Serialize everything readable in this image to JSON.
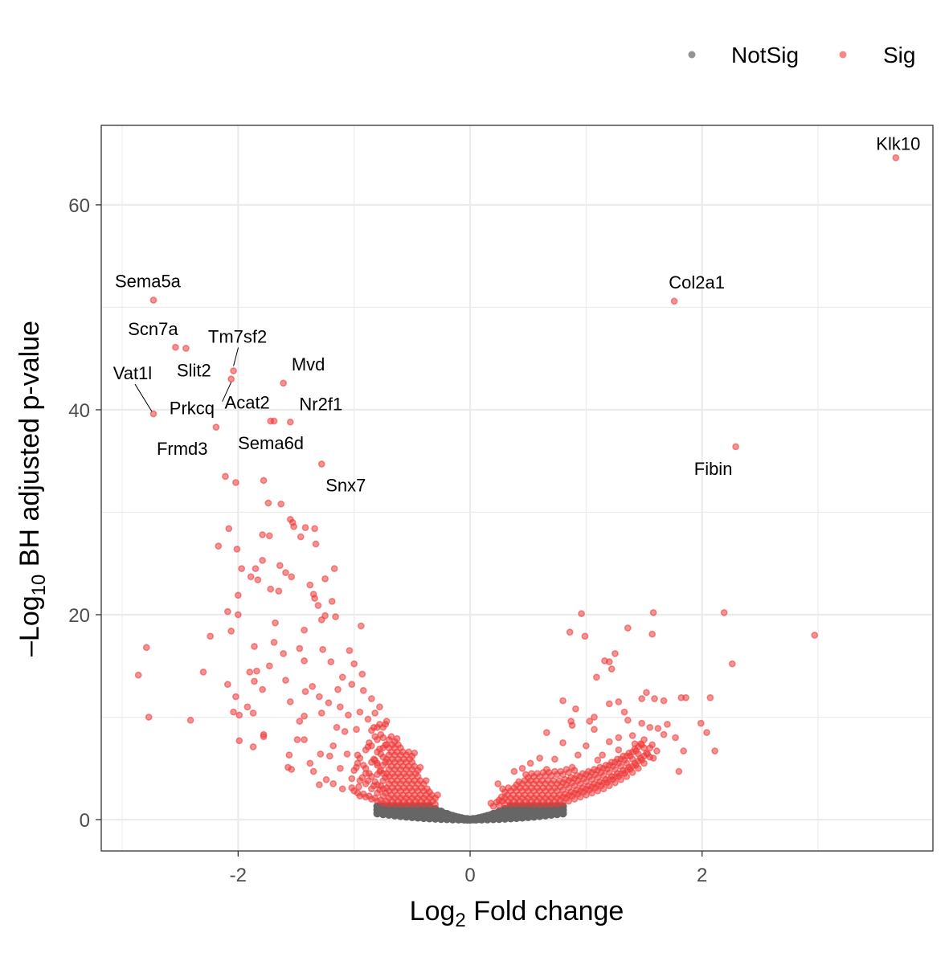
{
  "chart_data": {
    "type": "scatter",
    "title": "",
    "xlabel": {
      "base": "Log",
      "sub": "2",
      "rest": " Fold change"
    },
    "ylabel": {
      "prefix": "–Log",
      "sub": "10",
      "rest": " BH adjusted p-value"
    },
    "xlim": [
      -3.18,
      3.99
    ],
    "ylim": [
      -3.06,
      67.76
    ],
    "xticks": [
      -2,
      0,
      2
    ],
    "xtick_labels": [
      "-2",
      "0",
      "2"
    ],
    "yticks": [
      0,
      20,
      40,
      60
    ],
    "ytick_labels": [
      "0",
      "20",
      "40",
      "60"
    ],
    "grid": true,
    "legend": {
      "placement": "top-right",
      "entries": [
        {
          "label": "NotSig",
          "color": "#666666"
        },
        {
          "label": "Sig",
          "color": "#EE3B3B"
        }
      ]
    },
    "colors": {
      "NotSig": "#666666",
      "Sig": "#EE3B3B"
    },
    "labeled_genes": [
      {
        "gene": "Klk10",
        "x": 3.67,
        "y": 64.6
      },
      {
        "gene": "Col2a1",
        "x": 1.76,
        "y": 50.6
      },
      {
        "gene": "Fibin",
        "x": 2.29,
        "y": 36.4
      },
      {
        "gene": "Sema5a",
        "x": -2.73,
        "y": 50.7
      },
      {
        "gene": "Scn7a",
        "x": -2.54,
        "y": 46.1
      },
      {
        "gene": "Slit2",
        "x": -2.45,
        "y": 46.0
      },
      {
        "gene": "Tm7sf2",
        "x": -2.04,
        "y": 43.8
      },
      {
        "gene": "Acat2",
        "x": -2.06,
        "y": 43.0
      },
      {
        "gene": "Mvd",
        "x": -1.61,
        "y": 42.6
      },
      {
        "gene": "Vat1l",
        "x": -2.73,
        "y": 39.6
      },
      {
        "gene": "Nr2f1",
        "x": -1.55,
        "y": 38.8
      },
      {
        "gene": "Prkcq",
        "x": -2.19,
        "y": 38.3
      },
      {
        "gene": "Frmd3",
        "x": -1.72,
        "y": 38.9
      },
      {
        "gene": "Sema6d",
        "x": -1.69,
        "y": 38.9
      },
      {
        "gene": "Snx7",
        "x": -1.28,
        "y": 34.7
      }
    ],
    "sig_points": [
      [
        -2.11,
        33.5
      ],
      [
        -2.02,
        32.9
      ],
      [
        -1.78,
        33.1
      ],
      [
        -1.74,
        30.9
      ],
      [
        -1.63,
        30.8
      ],
      [
        -1.55,
        29.3
      ],
      [
        -1.52,
        28.6
      ],
      [
        -1.53,
        29.0
      ],
      [
        -1.42,
        28.5
      ],
      [
        -1.34,
        28.4
      ],
      [
        -1.46,
        27.6
      ],
      [
        -2.08,
        28.4
      ],
      [
        -1.79,
        27.8
      ],
      [
        -1.73,
        27.7
      ],
      [
        -1.33,
        26.9
      ],
      [
        -2.17,
        26.7
      ],
      [
        -2.01,
        26.4
      ],
      [
        -1.79,
        25.3
      ],
      [
        -1.97,
        24.5
      ],
      [
        -1.85,
        24.5
      ],
      [
        -1.64,
        24.8
      ],
      [
        -1.59,
        24.1
      ],
      [
        -1.17,
        24.5
      ],
      [
        -1.89,
        23.7
      ],
      [
        -1.83,
        23.4
      ],
      [
        -1.54,
        23.7
      ],
      [
        -1.25,
        23.5
      ],
      [
        -1.38,
        22.9
      ],
      [
        -1.72,
        22.5
      ],
      [
        -1.65,
        22.3
      ],
      [
        -2.0,
        21.9
      ],
      [
        -1.35,
        22.0
      ],
      [
        -1.34,
        21.6
      ],
      [
        -1.19,
        21.3
      ],
      [
        -2.09,
        20.3
      ],
      [
        -2.0,
        20.0
      ],
      [
        -1.31,
        20.9
      ],
      [
        -1.25,
        19.9
      ],
      [
        -1.16,
        19.8
      ],
      [
        -1.68,
        19.2
      ],
      [
        -1.28,
        19.5
      ],
      [
        -0.94,
        18.9
      ],
      [
        -2.06,
        18.4
      ],
      [
        -2.24,
        17.9
      ],
      [
        -1.43,
        18.5
      ],
      [
        -2.79,
        16.8
      ],
      [
        -1.86,
        16.9
      ],
      [
        -1.69,
        17.3
      ],
      [
        -1.27,
        16.6
      ],
      [
        -1.04,
        16.5
      ],
      [
        -1.61,
        16.2
      ],
      [
        -1.47,
        16.7
      ],
      [
        -1.9,
        14.4
      ],
      [
        -1.84,
        14.5
      ],
      [
        -2.3,
        14.4
      ],
      [
        -2.86,
        14.1
      ],
      [
        -1.73,
        15.0
      ],
      [
        -1.43,
        15.5
      ],
      [
        -1.0,
        15.2
      ],
      [
        -1.2,
        15.4
      ],
      [
        -1.86,
        13.5
      ],
      [
        -1.59,
        13.6
      ],
      [
        -2.09,
        13.2
      ],
      [
        -1.79,
        12.7
      ],
      [
        -1.42,
        12.5
      ],
      [
        -1.14,
        12.7
      ],
      [
        -2.02,
        12.0
      ],
      [
        -1.55,
        11.5
      ],
      [
        -1.92,
        11.0
      ],
      [
        -2.77,
        10.0
      ],
      [
        -2.04,
        10.5
      ],
      [
        -2.41,
        9.7
      ],
      [
        -1.99,
        10.2
      ],
      [
        -1.87,
        10.4
      ],
      [
        -1.43,
        10.1
      ],
      [
        -1.28,
        10.4
      ],
      [
        -1.47,
        9.6
      ],
      [
        -1.99,
        7.7
      ],
      [
        -1.87,
        7.1
      ],
      [
        -1.78,
        8.3
      ],
      [
        -1.78,
        8.1
      ],
      [
        -1.49,
        7.8
      ],
      [
        -1.43,
        7.8
      ],
      [
        -1.56,
        6.3
      ],
      [
        -1.57,
        5.1
      ],
      [
        -1.54,
        4.9
      ],
      [
        -1.38,
        5.5
      ],
      [
        -1.35,
        4.7
      ],
      [
        -1.29,
        6.4
      ],
      [
        -1.21,
        6.2
      ],
      [
        -1.24,
        3.9
      ],
      [
        -1.18,
        3.5
      ],
      [
        -1.06,
        6.4
      ],
      [
        -0.97,
        5.5
      ],
      [
        -0.9,
        4.5
      ],
      [
        -0.8,
        5.3
      ],
      [
        -1.1,
        13.9
      ],
      [
        -1.02,
        13.2
      ],
      [
        -0.92,
        12.6
      ],
      [
        -0.85,
        11.8
      ],
      [
        -1.12,
        11.0
      ],
      [
        -1.05,
        10.2
      ],
      [
        -0.95,
        10.5
      ],
      [
        -0.88,
        9.8
      ],
      [
        -1.15,
        9.0
      ],
      [
        -1.08,
        8.6
      ],
      [
        -0.98,
        8.8
      ],
      [
        -0.82,
        10.4
      ],
      [
        -1.3,
        12.0
      ],
      [
        -1.22,
        11.4
      ],
      [
        -1.36,
        13.0
      ],
      [
        -0.93,
        14.2
      ],
      [
        -1.18,
        7.2
      ],
      [
        -1.12,
        5.0
      ],
      [
        -1.02,
        4.0
      ],
      [
        -0.96,
        3.2
      ],
      [
        -1.1,
        3.0
      ],
      [
        -1.3,
        3.4
      ],
      [
        -0.72,
        9.6
      ],
      [
        -0.78,
        11.0
      ],
      [
        0.96,
        20.1
      ],
      [
        1.58,
        20.2
      ],
      [
        2.19,
        20.2
      ],
      [
        2.97,
        18.0
      ],
      [
        0.86,
        18.3
      ],
      [
        0.99,
        17.9
      ],
      [
        1.36,
        18.7
      ],
      [
        1.57,
        18.1
      ],
      [
        1.25,
        16.2
      ],
      [
        1.16,
        15.5
      ],
      [
        1.2,
        15.4
      ],
      [
        1.22,
        14.7
      ],
      [
        1.09,
        13.9
      ],
      [
        2.26,
        15.2
      ],
      [
        0.8,
        11.6
      ],
      [
        0.91,
        10.8
      ],
      [
        1.2,
        11.3
      ],
      [
        1.28,
        11.5
      ],
      [
        1.86,
        11.9
      ],
      [
        2.07,
        11.9
      ],
      [
        1.82,
        11.9
      ],
      [
        1.52,
        12.4
      ],
      [
        1.59,
        11.8
      ],
      [
        1.67,
        11.6
      ],
      [
        1.48,
        11.8
      ],
      [
        1.03,
        9.6
      ],
      [
        1.07,
        10.0
      ],
      [
        1.36,
        9.7
      ],
      [
        1.48,
        9.4
      ],
      [
        1.99,
        9.4
      ],
      [
        2.04,
        8.5
      ],
      [
        1.67,
        8.3
      ],
      [
        1.07,
        8.8
      ],
      [
        0.87,
        9.6
      ],
      [
        0.66,
        8.5
      ],
      [
        1.28,
        8.0
      ],
      [
        2.11,
        6.7
      ],
      [
        1.61,
        6.7
      ],
      [
        1.84,
        6.7
      ],
      [
        1.8,
        4.7
      ],
      [
        1.77,
        8.0
      ],
      [
        0.88,
        9.2
      ],
      [
        1.42,
        7.4
      ],
      [
        0.8,
        7.5
      ],
      [
        0.93,
        6.3
      ],
      [
        1.14,
        6.3
      ],
      [
        1.28,
        6.8
      ],
      [
        0.73,
        5.9
      ],
      [
        0.52,
        5.5
      ],
      [
        0.66,
        4.9
      ],
      [
        0.38,
        4.7
      ],
      [
        0.24,
        3.5
      ],
      [
        1.62,
        8.9
      ],
      [
        1.7,
        9.3
      ],
      [
        1.4,
        8.2
      ],
      [
        1.55,
        9.0
      ],
      [
        1.0,
        7.2
      ],
      [
        1.2,
        7.6
      ],
      [
        0.6,
        6.0
      ],
      [
        0.45,
        5.0
      ],
      [
        1.33,
        10.5
      ],
      [
        1.1,
        5.8
      ],
      [
        1.5,
        7.8
      ],
      [
        1.58,
        6.0
      ]
    ],
    "sig_dense_columns": [
      [
        -1.0,
        [
          2.8,
          4.8
        ]
      ],
      [
        -0.95,
        [
          2.3,
          3.8,
          6.0
        ]
      ],
      [
        -0.9,
        [
          2.2,
          3.5,
          5.0,
          6.8
        ]
      ],
      [
        -0.85,
        [
          2.0,
          3.0,
          4.2,
          5.6,
          7.2,
          8.7
        ]
      ],
      [
        -0.8,
        [
          1.8,
          2.6,
          3.4,
          4.4,
          5.5,
          6.6,
          7.8,
          9.0
        ]
      ],
      [
        -0.75,
        [
          1.6,
          2.3,
          3.0,
          3.8,
          4.5,
          5.3,
          6.1,
          7.0,
          8.0,
          9.0
        ]
      ],
      [
        -0.7,
        [
          1.5,
          2.1,
          2.8,
          3.5,
          4.2,
          4.9,
          5.6,
          6.3,
          7.0,
          7.8
        ]
      ],
      [
        -0.65,
        [
          1.5,
          2.1,
          2.8,
          3.5,
          4.2,
          4.9,
          5.6,
          6.3,
          7.0,
          7.6
        ]
      ],
      [
        -0.6,
        [
          1.5,
          2.1,
          2.8,
          3.5,
          4.2,
          4.9,
          5.6,
          6.3,
          7.0
        ]
      ],
      [
        -0.55,
        [
          1.5,
          2.1,
          2.8,
          3.5,
          4.2,
          4.9,
          5.6,
          6.3
        ]
      ],
      [
        -0.5,
        [
          1.5,
          2.1,
          2.8,
          3.5,
          4.2,
          4.9,
          5.6,
          6.2
        ]
      ],
      [
        -0.45,
        [
          1.5,
          2.1,
          2.8,
          3.5,
          4.2,
          4.8
        ]
      ],
      [
        -0.4,
        [
          1.5,
          2.1,
          2.8,
          3.5
        ]
      ],
      [
        -0.35,
        [
          1.5,
          2.1,
          2.7
        ]
      ],
      [
        -0.3,
        [
          1.5,
          2.1
        ]
      ],
      [
        0.2,
        [
          1.3
        ]
      ],
      [
        0.25,
        [
          1.4,
          1.9
        ]
      ],
      [
        0.3,
        [
          1.5,
          2.1,
          2.7
        ]
      ],
      [
        0.35,
        [
          1.5,
          2.1,
          2.8
        ]
      ],
      [
        0.4,
        [
          1.5,
          2.1,
          2.8,
          3.4
        ]
      ],
      [
        0.45,
        [
          1.5,
          2.1,
          2.8,
          3.5
        ]
      ],
      [
        0.5,
        [
          1.5,
          2.1,
          2.8,
          3.5,
          4.1
        ]
      ],
      [
        0.55,
        [
          1.5,
          2.1,
          2.8,
          3.5,
          4.2
        ]
      ],
      [
        0.6,
        [
          1.5,
          2.1,
          2.8,
          3.5,
          4.2
        ]
      ],
      [
        0.65,
        [
          1.5,
          2.1,
          2.8,
          3.5,
          4.3
        ]
      ],
      [
        0.7,
        [
          1.5,
          2.1,
          2.8,
          3.5,
          4.3
        ]
      ],
      [
        0.75,
        [
          1.5,
          2.1,
          2.8,
          3.5,
          4.4
        ]
      ],
      [
        0.8,
        [
          1.6,
          2.2,
          2.9,
          3.6,
          4.4
        ]
      ],
      [
        0.85,
        [
          1.8,
          2.4,
          3.1,
          3.8,
          4.6
        ]
      ],
      [
        0.9,
        [
          2.0,
          2.6,
          3.3,
          4.0,
          4.8
        ]
      ],
      [
        0.95,
        [
          2.2,
          2.8,
          3.5,
          4.2
        ]
      ],
      [
        1.0,
        [
          2.4,
          3.0,
          3.7,
          4.4
        ]
      ],
      [
        1.05,
        [
          2.6,
          3.2,
          3.9,
          4.6
        ]
      ],
      [
        1.1,
        [
          2.8,
          3.4,
          4.1,
          4.8
        ]
      ],
      [
        1.15,
        [
          3.0,
          3.6,
          4.3,
          5.0
        ]
      ],
      [
        1.2,
        [
          3.3,
          3.9,
          4.6,
          5.3
        ]
      ],
      [
        1.25,
        [
          3.6,
          4.2,
          4.9,
          5.6
        ]
      ],
      [
        1.3,
        [
          3.9,
          4.5,
          5.2,
          5.9
        ]
      ],
      [
        1.35,
        [
          4.2,
          4.8,
          5.5,
          6.2
        ]
      ],
      [
        1.4,
        [
          4.6,
          5.2,
          5.9,
          6.6
        ]
      ],
      [
        1.45,
        [
          5.0,
          5.7,
          6.4,
          7.1
        ]
      ],
      [
        1.5,
        [
          5.5,
          6.2,
          7.0
        ]
      ],
      [
        1.55,
        [
          6.1,
          7.0
        ]
      ]
    ],
    "notsig_columns": [
      [
        0.0,
        [
          0,
          0,
          0
        ]
      ],
      [
        0.05,
        [
          0.0,
          0.04,
          0.07
        ]
      ],
      [
        0.1,
        [
          0.01,
          0.1,
          0.2
        ]
      ],
      [
        0.15,
        [
          0.02,
          0.19,
          0.36
        ]
      ],
      [
        0.2,
        [
          0.04,
          0.3,
          0.56
        ]
      ],
      [
        0.25,
        [
          0.06,
          0.42,
          0.78
        ]
      ],
      [
        0.3,
        [
          0.09,
          0.56,
          1.03
        ]
      ],
      [
        0.35,
        [
          0.12,
          0.71,
          1.3
        ]
      ],
      [
        0.4,
        [
          0.15,
          0.73,
          1.3
        ]
      ],
      [
        0.45,
        [
          0.19,
          0.75,
          1.3
        ]
      ],
      [
        0.5,
        [
          0.24,
          0.77,
          1.3
        ]
      ],
      [
        0.55,
        [
          0.29,
          0.8,
          1.3
        ]
      ],
      [
        0.6,
        [
          0.34,
          0.82,
          1.3
        ]
      ],
      [
        0.65,
        [
          0.4,
          0.85,
          1.3
        ]
      ],
      [
        0.7,
        [
          0.47,
          0.88,
          1.3
        ]
      ],
      [
        0.75,
        [
          0.53,
          0.92,
          1.3
        ]
      ],
      [
        0.8,
        [
          0.6,
          0.95,
          1.3
        ]
      ]
    ]
  }
}
